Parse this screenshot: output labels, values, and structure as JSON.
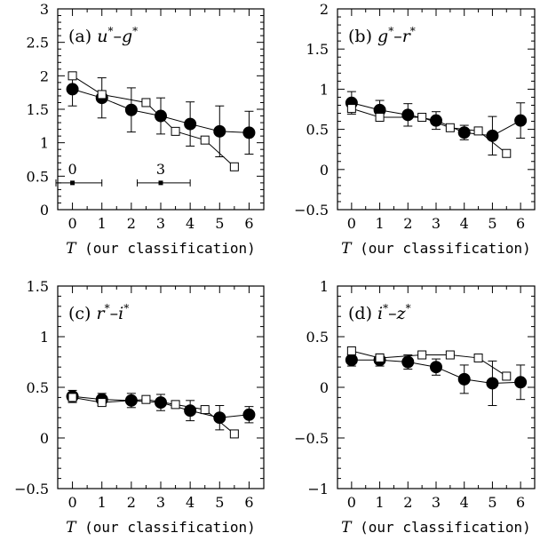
{
  "chart_data": [
    {
      "type": "line",
      "panel": "a",
      "label_prefix": "(a)",
      "var1": "u",
      "var2": "g",
      "sup": "*",
      "sep": "–",
      "xlabel": "T (our classification)",
      "xlim": [
        -0.5,
        6.5
      ],
      "ylim": [
        0,
        3
      ],
      "xticks": [
        0,
        1,
        2,
        3,
        4,
        5,
        6
      ],
      "yticks": [
        0,
        0.5,
        1,
        1.5,
        2,
        2.5,
        3
      ],
      "ytick_labels": [
        "0",
        "0.5",
        "1",
        "1.5",
        "2",
        "2.5",
        "3"
      ],
      "series": [
        {
          "marker": "filled-circle",
          "points": [
            [
              0,
              1.8
            ],
            [
              1,
              1.67
            ],
            [
              2,
              1.49
            ],
            [
              3,
              1.4
            ],
            [
              4,
              1.28
            ],
            [
              5,
              1.17
            ],
            [
              6,
              1.15
            ]
          ],
          "err": [
            0.25,
            0.3,
            0.33,
            0.27,
            0.33,
            0.38,
            0.32
          ]
        },
        {
          "marker": "open-square",
          "points": [
            [
              0,
              2.0
            ],
            [
              1,
              1.72
            ],
            [
              2.5,
              1.6
            ],
            [
              3.5,
              1.17
            ],
            [
              4.5,
              1.04
            ],
            [
              5.5,
              0.64
            ]
          ]
        }
      ],
      "range_markers": [
        {
          "label": "0",
          "center": 0,
          "low": -1,
          "high": 1,
          "y": 0.4
        },
        {
          "label": "3",
          "center": 3,
          "low": 2.2,
          "high": 4,
          "y": 0.4
        }
      ]
    },
    {
      "type": "line",
      "panel": "b",
      "label_prefix": "(b)",
      "var1": "g",
      "var2": "r",
      "sup": "*",
      "sep": "–",
      "xlabel": "T (our classification)",
      "xlim": [
        -0.5,
        6.5
      ],
      "ylim": [
        -0.5,
        2
      ],
      "xticks": [
        0,
        1,
        2,
        3,
        4,
        5,
        6
      ],
      "yticks": [
        -0.5,
        0,
        0.5,
        1,
        1.5,
        2
      ],
      "ytick_labels": [
        "−0.5",
        "0",
        "0.5",
        "1",
        "1.5",
        "2"
      ],
      "series": [
        {
          "marker": "filled-circle",
          "points": [
            [
              0,
              0.83
            ],
            [
              1,
              0.74
            ],
            [
              2,
              0.68
            ],
            [
              3,
              0.61
            ],
            [
              4,
              0.46
            ],
            [
              5,
              0.42
            ],
            [
              6,
              0.61
            ]
          ],
          "err": [
            0.14,
            0.12,
            0.14,
            0.11,
            0.09,
            0.24,
            0.22
          ]
        },
        {
          "marker": "open-square",
          "points": [
            [
              0,
              0.76
            ],
            [
              1,
              0.65
            ],
            [
              2.5,
              0.65
            ],
            [
              3.5,
              0.52
            ],
            [
              4.5,
              0.48
            ],
            [
              5.5,
              0.2
            ]
          ]
        }
      ],
      "range_markers": []
    },
    {
      "type": "line",
      "panel": "c",
      "label_prefix": "(c)",
      "var1": "r",
      "var2": "i",
      "sup": "*",
      "sep": "–",
      "xlabel": "T (our classification)",
      "xlim": [
        -0.5,
        6.5
      ],
      "ylim": [
        -0.5,
        1.5
      ],
      "xticks": [
        0,
        1,
        2,
        3,
        4,
        5,
        6
      ],
      "yticks": [
        -0.5,
        0,
        0.5,
        1,
        1.5
      ],
      "ytick_labels": [
        "−0.5",
        "0",
        "0.5",
        "1",
        "1.5"
      ],
      "series": [
        {
          "marker": "filled-circle",
          "points": [
            [
              0,
              0.41
            ],
            [
              1,
              0.38
            ],
            [
              2,
              0.37
            ],
            [
              3,
              0.35
            ],
            [
              4,
              0.27
            ],
            [
              5,
              0.2
            ],
            [
              6,
              0.23
            ]
          ],
          "err": [
            0.06,
            0.06,
            0.07,
            0.08,
            0.1,
            0.12,
            0.08
          ]
        },
        {
          "marker": "open-square",
          "points": [
            [
              0,
              0.4
            ],
            [
              1,
              0.35
            ],
            [
              2.5,
              0.38
            ],
            [
              3.5,
              0.33
            ],
            [
              4.5,
              0.28
            ],
            [
              5.5,
              0.04
            ]
          ]
        }
      ],
      "range_markers": []
    },
    {
      "type": "line",
      "panel": "d",
      "label_prefix": "(d)",
      "var1": "i",
      "var2": "z",
      "sup": "*",
      "sep": "–",
      "xlabel": "T (our classification)",
      "xlim": [
        -0.5,
        6.5
      ],
      "ylim": [
        -1,
        1
      ],
      "xticks": [
        0,
        1,
        2,
        3,
        4,
        5,
        6
      ],
      "yticks": [
        -1,
        -0.5,
        0,
        0.5,
        1
      ],
      "ytick_labels": [
        "−1",
        "−0.5",
        "0",
        "0.5",
        "1"
      ],
      "series": [
        {
          "marker": "filled-circle",
          "points": [
            [
              0,
              0.27
            ],
            [
              1,
              0.27
            ],
            [
              2,
              0.25
            ],
            [
              3,
              0.2
            ],
            [
              4,
              0.08
            ],
            [
              5,
              0.04
            ],
            [
              6,
              0.05
            ]
          ],
          "err": [
            0.06,
            0.06,
            0.07,
            0.08,
            0.14,
            0.22,
            0.17
          ]
        },
        {
          "marker": "open-square",
          "points": [
            [
              0,
              0.36
            ],
            [
              1,
              0.29
            ],
            [
              2.5,
              0.32
            ],
            [
              3.5,
              0.32
            ],
            [
              4.5,
              0.29
            ],
            [
              5.5,
              0.11
            ]
          ]
        }
      ],
      "range_markers": []
    }
  ]
}
